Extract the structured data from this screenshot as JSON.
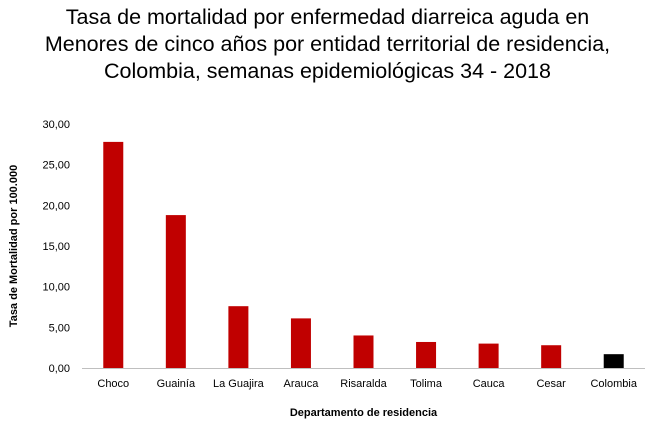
{
  "chart_data": {
    "type": "bar",
    "title_lines": [
      "Tasa de mortalidad por enfermedad diarreica aguda en",
      "Menores de cinco años por entidad territorial de residencia,",
      "Colombia, semanas epidemiológicas 34 - 2018"
    ],
    "xlabel": "Departamento de residencia",
    "ylabel": "Tasa de Mortalidad por 100.000",
    "categories": [
      "Choco",
      "Guainía",
      "La Guajira",
      "Arauca",
      "Risaralda",
      "Tolima",
      "Cauca",
      "Cesar",
      "Colombia"
    ],
    "values": [
      27.8,
      18.8,
      7.6,
      6.1,
      4.0,
      3.2,
      3.0,
      2.8,
      1.7
    ],
    "bar_colors": [
      "#c00000",
      "#c00000",
      "#c00000",
      "#c00000",
      "#c00000",
      "#c00000",
      "#c00000",
      "#c00000",
      "#000000"
    ],
    "ylim": [
      0,
      30
    ],
    "yticks": [
      "0,00",
      "5,00",
      "10,00",
      "15,00",
      "20,00",
      "25,00",
      "30,00"
    ],
    "grid": false,
    "legend": "none"
  }
}
